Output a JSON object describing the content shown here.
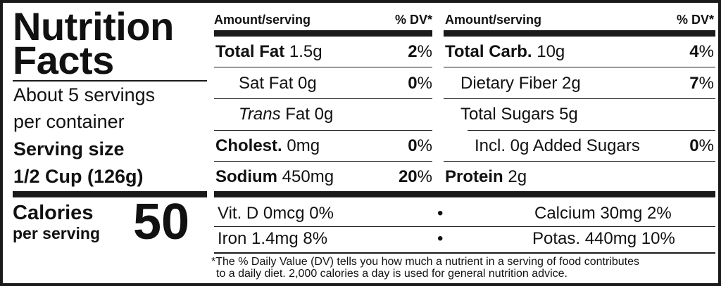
{
  "title_line1": "Nutrition",
  "title_line2": "Facts",
  "servings_line1": "About 5 servings",
  "servings_line2": "per container",
  "serving_size_label": "Serving size",
  "serving_size_value": "1/2 Cup (126g)",
  "calories_label": "Calories",
  "calories_sub": "per serving",
  "calories_value": "50",
  "left_header": {
    "amount": "Amount/serving",
    "dv": "% DV*"
  },
  "right_header": {
    "amount": "Amount/serving",
    "dv": "% DV*"
  },
  "left_rows": [
    {
      "name": "Total Fat",
      "amount": "1.5g",
      "dv": "2"
    },
    {
      "name": "Sat Fat",
      "amount": "0g",
      "dv": "0"
    },
    {
      "name": "Trans",
      "amount": "Fat 0g",
      "dv": ""
    },
    {
      "name": "Cholest.",
      "amount": "0mg",
      "dv": "0"
    },
    {
      "name": "Sodium",
      "amount": "450mg",
      "dv": "20"
    }
  ],
  "right_rows": [
    {
      "name": "Total Carb.",
      "amount": "10g",
      "dv": "4"
    },
    {
      "name": "Dietary Fiber",
      "amount": "2g",
      "dv": "7"
    },
    {
      "name": "Total Sugars",
      "amount": "5g",
      "dv": ""
    },
    {
      "name": "Incl. 0g Added Sugars",
      "amount": "",
      "dv": "0"
    },
    {
      "name": "Protein",
      "amount": "2g",
      "dv": ""
    }
  ],
  "percent_sign": "%",
  "bullet": "•",
  "vitamins": {
    "vit_d": "Vit. D 0mcg 0%",
    "calcium": "Calcium 30mg 2%",
    "iron": "Iron 1.4mg 8%",
    "potassium": "Potas. 440mg 10%"
  },
  "footnote_line1": "*The % Daily Value (DV) tells you how much a nutrient in a serving of food contributes",
  "footnote_line2": "to a daily diet. 2,000 calories a day is used for general nutrition advice."
}
